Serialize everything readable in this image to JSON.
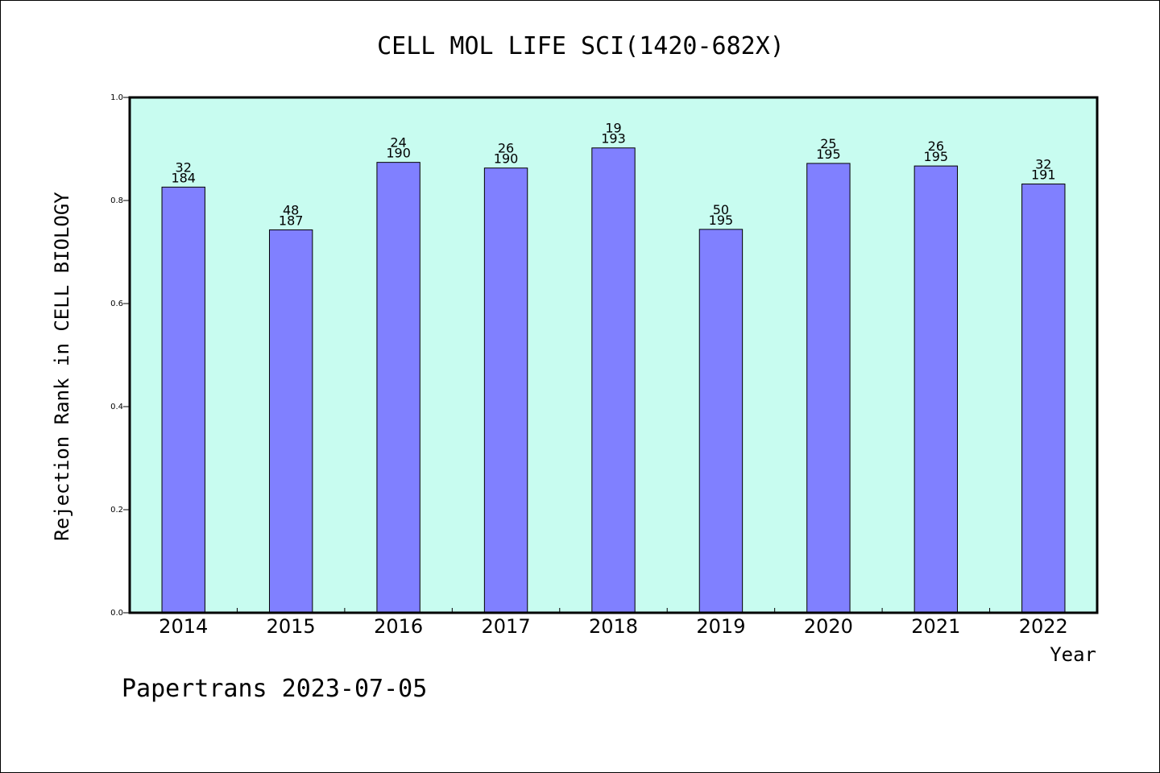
{
  "chart_data": {
    "type": "bar",
    "title": "CELL MOL LIFE SCI(1420-682X)",
    "xlabel": "Year",
    "ylabel": "Rejection Rank in CELL BIOLOGY",
    "ylim": [
      0.0,
      1.0
    ],
    "yticks": [
      "0.0",
      "0.2",
      "0.4",
      "0.6",
      "0.8",
      "1.0"
    ],
    "categories": [
      "2014",
      "2015",
      "2016",
      "2017",
      "2018",
      "2019",
      "2020",
      "2021",
      "2022"
    ],
    "values": [
      0.826,
      0.743,
      0.874,
      0.863,
      0.902,
      0.744,
      0.872,
      0.867,
      0.832
    ],
    "rank": [
      "32",
      "48",
      "24",
      "26",
      "19",
      "50",
      "25",
      "26",
      "32"
    ],
    "total": [
      "184",
      "187",
      "190",
      "190",
      "193",
      "195",
      "195",
      "195",
      "191"
    ],
    "grid": false,
    "legend": "none"
  },
  "colors": {
    "plot_background": "#c8fcf0",
    "bar_fill": "#8080ff",
    "bar_stroke": "#000000"
  },
  "footer": "Papertrans 2023-07-05"
}
